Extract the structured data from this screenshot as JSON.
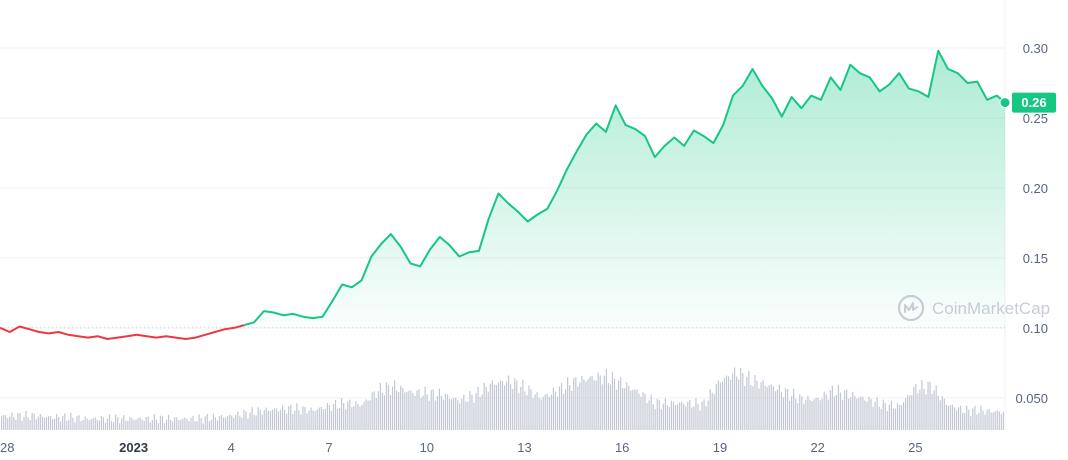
{
  "watermark": {
    "text": "CoinMarketCap"
  },
  "current_price": {
    "label": "0.26",
    "color": "#16c784"
  },
  "colors": {
    "up": "#16c784",
    "down": "#ea3943",
    "volume": "#c3c8d4",
    "grid": "#eff2f5",
    "baseline": "#c9ced6"
  },
  "chart_data": {
    "type": "line",
    "title": "",
    "xlabel": "",
    "ylabel": "",
    "y_ticks": [
      "0.30",
      "0.25",
      "0.20",
      "0.15",
      "0.10",
      "0.050"
    ],
    "y_tick_values": [
      0.3,
      0.25,
      0.2,
      0.15,
      0.1,
      0.05
    ],
    "ylim": [
      0.027,
      0.32
    ],
    "x_ticks": [
      {
        "label": "28",
        "day": -4,
        "bold": false
      },
      {
        "label": "2023",
        "day": 0,
        "bold": true
      },
      {
        "label": "4",
        "day": 3,
        "bold": false
      },
      {
        "label": "7",
        "day": 6,
        "bold": false
      },
      {
        "label": "10",
        "day": 9,
        "bold": false
      },
      {
        "label": "13",
        "day": 12,
        "bold": false
      },
      {
        "label": "16",
        "day": 15,
        "bold": false
      },
      {
        "label": "19",
        "day": 18,
        "bold": false
      },
      {
        "label": "22",
        "day": 21,
        "bold": false
      },
      {
        "label": "25",
        "day": 24,
        "bold": false
      }
    ],
    "xlim": [
      -4.1,
      26.75
    ],
    "baseline_price": 0.1,
    "series": [
      {
        "values": [
          [
            -4.1,
            0.1
          ],
          [
            -3.8,
            0.097
          ],
          [
            -3.5,
            0.101
          ],
          [
            -3.2,
            0.099
          ],
          [
            -2.9,
            0.097
          ],
          [
            -2.6,
            0.096
          ],
          [
            -2.3,
            0.097
          ],
          [
            -2.0,
            0.095
          ],
          [
            -1.7,
            0.094
          ],
          [
            -1.4,
            0.093
          ],
          [
            -1.1,
            0.094
          ],
          [
            -0.8,
            0.092
          ],
          [
            -0.5,
            0.093
          ],
          [
            -0.2,
            0.094
          ],
          [
            0.1,
            0.095
          ],
          [
            0.4,
            0.094
          ],
          [
            0.7,
            0.093
          ],
          [
            1.0,
            0.094
          ],
          [
            1.3,
            0.093
          ],
          [
            1.6,
            0.092
          ],
          [
            1.9,
            0.093
          ],
          [
            2.2,
            0.095
          ],
          [
            2.5,
            0.097
          ],
          [
            2.8,
            0.099
          ],
          [
            3.1,
            0.1
          ],
          [
            3.4,
            0.102
          ],
          [
            3.7,
            0.104
          ],
          [
            4.0,
            0.112
          ],
          [
            4.3,
            0.111
          ],
          [
            4.6,
            0.109
          ],
          [
            4.9,
            0.11
          ],
          [
            5.2,
            0.108
          ],
          [
            5.5,
            0.107
          ],
          [
            5.8,
            0.108
          ],
          [
            6.1,
            0.119
          ],
          [
            6.4,
            0.131
          ],
          [
            6.7,
            0.129
          ],
          [
            7.0,
            0.134
          ],
          [
            7.3,
            0.151
          ],
          [
            7.6,
            0.16
          ],
          [
            7.9,
            0.167
          ],
          [
            8.2,
            0.158
          ],
          [
            8.5,
            0.146
          ],
          [
            8.8,
            0.144
          ],
          [
            9.1,
            0.156
          ],
          [
            9.4,
            0.165
          ],
          [
            9.7,
            0.159
          ],
          [
            10.0,
            0.151
          ],
          [
            10.3,
            0.154
          ],
          [
            10.6,
            0.155
          ],
          [
            10.9,
            0.178
          ],
          [
            11.2,
            0.196
          ],
          [
            11.5,
            0.189
          ],
          [
            11.8,
            0.183
          ],
          [
            12.1,
            0.176
          ],
          [
            12.4,
            0.181
          ],
          [
            12.7,
            0.185
          ],
          [
            13.0,
            0.198
          ],
          [
            13.3,
            0.213
          ],
          [
            13.6,
            0.226
          ],
          [
            13.9,
            0.238
          ],
          [
            14.2,
            0.246
          ],
          [
            14.5,
            0.24
          ],
          [
            14.8,
            0.259
          ],
          [
            15.1,
            0.245
          ],
          [
            15.4,
            0.242
          ],
          [
            15.7,
            0.237
          ],
          [
            16.0,
            0.222
          ],
          [
            16.3,
            0.23
          ],
          [
            16.6,
            0.236
          ],
          [
            16.9,
            0.23
          ],
          [
            17.2,
            0.241
          ],
          [
            17.5,
            0.237
          ],
          [
            17.8,
            0.232
          ],
          [
            18.1,
            0.245
          ],
          [
            18.4,
            0.266
          ],
          [
            18.7,
            0.273
          ],
          [
            19.0,
            0.285
          ],
          [
            19.3,
            0.273
          ],
          [
            19.6,
            0.264
          ],
          [
            19.9,
            0.251
          ],
          [
            20.2,
            0.265
          ],
          [
            20.5,
            0.257
          ],
          [
            20.8,
            0.266
          ],
          [
            21.1,
            0.263
          ],
          [
            21.4,
            0.279
          ],
          [
            21.7,
            0.27
          ],
          [
            22.0,
            0.288
          ],
          [
            22.3,
            0.282
          ],
          [
            22.6,
            0.279
          ],
          [
            22.9,
            0.269
          ],
          [
            23.2,
            0.274
          ],
          [
            23.5,
            0.282
          ],
          [
            23.8,
            0.271
          ],
          [
            24.1,
            0.269
          ],
          [
            24.4,
            0.265
          ],
          [
            24.7,
            0.298
          ],
          [
            25.0,
            0.285
          ],
          [
            25.3,
            0.282
          ],
          [
            25.6,
            0.275
          ],
          [
            25.9,
            0.276
          ],
          [
            26.2,
            0.263
          ],
          [
            26.5,
            0.266
          ],
          [
            26.75,
            0.261
          ]
        ]
      }
    ],
    "volume": {
      "values": [
        [
          -4.0,
          0.037
        ],
        [
          -3.5,
          0.037
        ],
        [
          -3.0,
          0.037
        ],
        [
          -2.5,
          0.036
        ],
        [
          -2.0,
          0.036
        ],
        [
          -1.5,
          0.035
        ],
        [
          -1.0,
          0.035
        ],
        [
          -0.5,
          0.035
        ],
        [
          0.0,
          0.035
        ],
        [
          0.5,
          0.035
        ],
        [
          1.0,
          0.035
        ],
        [
          1.5,
          0.035
        ],
        [
          2.0,
          0.035
        ],
        [
          2.5,
          0.036
        ],
        [
          3.0,
          0.037
        ],
        [
          3.5,
          0.039
        ],
        [
          4.0,
          0.041
        ],
        [
          4.5,
          0.042
        ],
        [
          5.0,
          0.042
        ],
        [
          5.5,
          0.041
        ],
        [
          6.0,
          0.044
        ],
        [
          6.5,
          0.046
        ],
        [
          7.0,
          0.045
        ],
        [
          7.5,
          0.055
        ],
        [
          8.0,
          0.058
        ],
        [
          8.5,
          0.054
        ],
        [
          9.0,
          0.053
        ],
        [
          9.5,
          0.052
        ],
        [
          10.0,
          0.048
        ],
        [
          10.5,
          0.052
        ],
        [
          11.0,
          0.06
        ],
        [
          11.5,
          0.062
        ],
        [
          12.0,
          0.057
        ],
        [
          12.5,
          0.05
        ],
        [
          13.0,
          0.055
        ],
        [
          13.5,
          0.061
        ],
        [
          14.0,
          0.064
        ],
        [
          14.5,
          0.065
        ],
        [
          15.0,
          0.06
        ],
        [
          15.5,
          0.054
        ],
        [
          16.0,
          0.046
        ],
        [
          16.5,
          0.046
        ],
        [
          17.0,
          0.046
        ],
        [
          17.5,
          0.045
        ],
        [
          18.0,
          0.062
        ],
        [
          18.5,
          0.068
        ],
        [
          19.0,
          0.062
        ],
        [
          19.5,
          0.059
        ],
        [
          20.0,
          0.054
        ],
        [
          20.5,
          0.049
        ],
        [
          21.0,
          0.049
        ],
        [
          21.5,
          0.055
        ],
        [
          22.0,
          0.052
        ],
        [
          22.5,
          0.049
        ],
        [
          23.0,
          0.045
        ],
        [
          23.5,
          0.044
        ],
        [
          24.0,
          0.057
        ],
        [
          24.5,
          0.058
        ],
        [
          25.0,
          0.045
        ],
        [
          25.5,
          0.041
        ],
        [
          26.0,
          0.041
        ],
        [
          26.5,
          0.04
        ]
      ]
    },
    "grid": true,
    "watermark": "CoinMarketCap"
  }
}
